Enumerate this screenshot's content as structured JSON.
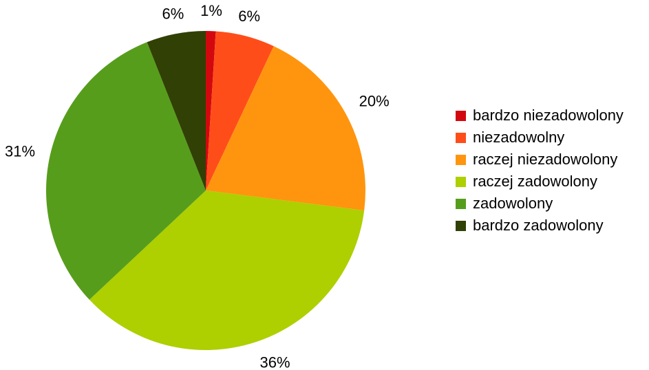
{
  "chart_data": {
    "type": "pie",
    "title": "",
    "categories": [
      "bardzo niezadowolony",
      "niezadowolny",
      "raczej niezadowolony",
      "raczej zadowolony",
      "zadowolony",
      "bardzo zadowolony"
    ],
    "values": [
      1,
      6,
      20,
      36,
      31,
      6
    ],
    "value_labels": [
      "1%",
      "6%",
      "20%",
      "36%",
      "31%",
      "6%"
    ],
    "unit": "%",
    "colors": [
      "#d3080e",
      "#ff4d1a",
      "#ff950e",
      "#aecf00",
      "#579d1c",
      "#314004"
    ],
    "start_angle": "12 o'clock",
    "direction": "clockwise",
    "legend_position": "right"
  }
}
